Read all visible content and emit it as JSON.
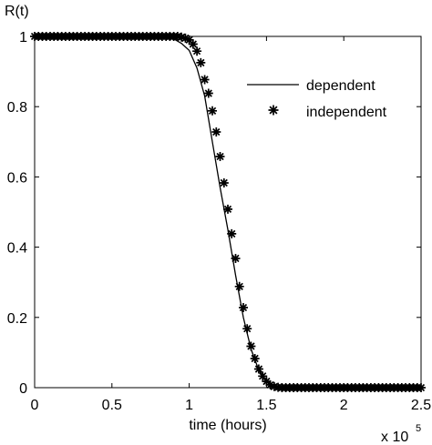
{
  "chart_data": {
    "type": "line",
    "title": "",
    "xlabel": "time (hours)",
    "ylabel": "R(t)",
    "x_multiplier_label": "x 10",
    "x_multiplier_exponent": "5",
    "xlim": [
      0,
      2.5
    ],
    "ylim": [
      0,
      1
    ],
    "xticks": [
      "0",
      "0.5",
      "1",
      "1.5",
      "2",
      "2.5"
    ],
    "yticks": [
      "0",
      "0.2",
      "0.4",
      "0.6",
      "0.8",
      "1"
    ],
    "grid": false,
    "legend_position": "top-right",
    "series": [
      {
        "name": "dependent",
        "style": "solid-line",
        "color": "#000000",
        "x": [
          0,
          0.5,
          0.8,
          0.85,
          0.9,
          0.95,
          1.0,
          1.05,
          1.1,
          1.15,
          1.2,
          1.25,
          1.3,
          1.35,
          1.4,
          1.45,
          1.5,
          1.55,
          1.6,
          1.7,
          2.0,
          2.5
        ],
        "y": [
          1,
          1,
          1,
          0.998,
          0.993,
          0.98,
          0.96,
          0.91,
          0.83,
          0.7,
          0.57,
          0.45,
          0.32,
          0.2,
          0.11,
          0.05,
          0.02,
          0.006,
          0.002,
          0,
          0,
          0
        ]
      },
      {
        "name": "independent",
        "style": "star-markers",
        "color": "#000000",
        "x": [
          0,
          0.025,
          0.05,
          0.075,
          0.1,
          0.125,
          0.15,
          0.175,
          0.2,
          0.225,
          0.25,
          0.275,
          0.3,
          0.325,
          0.35,
          0.375,
          0.4,
          0.425,
          0.45,
          0.475,
          0.5,
          0.525,
          0.55,
          0.575,
          0.6,
          0.625,
          0.65,
          0.675,
          0.7,
          0.725,
          0.75,
          0.775,
          0.8,
          0.825,
          0.85,
          0.875,
          0.9,
          0.925,
          0.95,
          0.975,
          1.0,
          1.025,
          1.05,
          1.075,
          1.1,
          1.125,
          1.15,
          1.175,
          1.2,
          1.225,
          1.25,
          1.275,
          1.3,
          1.325,
          1.35,
          1.375,
          1.4,
          1.425,
          1.45,
          1.475,
          1.5,
          1.525,
          1.55,
          1.575,
          1.6,
          1.625,
          1.65,
          1.675,
          1.7,
          1.725,
          1.75,
          1.775,
          1.8,
          1.825,
          1.85,
          1.875,
          1.9,
          1.925,
          1.95,
          1.975,
          2.0,
          2.025,
          2.05,
          2.075,
          2.1,
          2.125,
          2.15,
          2.175,
          2.2,
          2.225,
          2.25,
          2.275,
          2.3,
          2.325,
          2.35,
          2.375,
          2.4,
          2.425,
          2.45,
          2.475,
          2.5
        ],
        "y": [
          1,
          1,
          1,
          1,
          1,
          1,
          1,
          1,
          1,
          1,
          1,
          1,
          1,
          1,
          1,
          1,
          1,
          1,
          1,
          1,
          1,
          1,
          1,
          1,
          1,
          1,
          1,
          1,
          1,
          1,
          1,
          1,
          1,
          1,
          1,
          1,
          1,
          1,
          0.998,
          0.995,
          0.99,
          0.978,
          0.958,
          0.925,
          0.877,
          0.838,
          0.788,
          0.728,
          0.658,
          0.583,
          0.508,
          0.438,
          0.368,
          0.288,
          0.228,
          0.168,
          0.118,
          0.083,
          0.053,
          0.033,
          0.018,
          0.008,
          0.003,
          0.001,
          0,
          0,
          0,
          0,
          0,
          0,
          0,
          0,
          0,
          0,
          0,
          0,
          0,
          0,
          0,
          0,
          0,
          0,
          0,
          0,
          0,
          0,
          0,
          0,
          0,
          0,
          0,
          0,
          0,
          0,
          0,
          0,
          0,
          0,
          0,
          0,
          0
        ]
      }
    ]
  }
}
